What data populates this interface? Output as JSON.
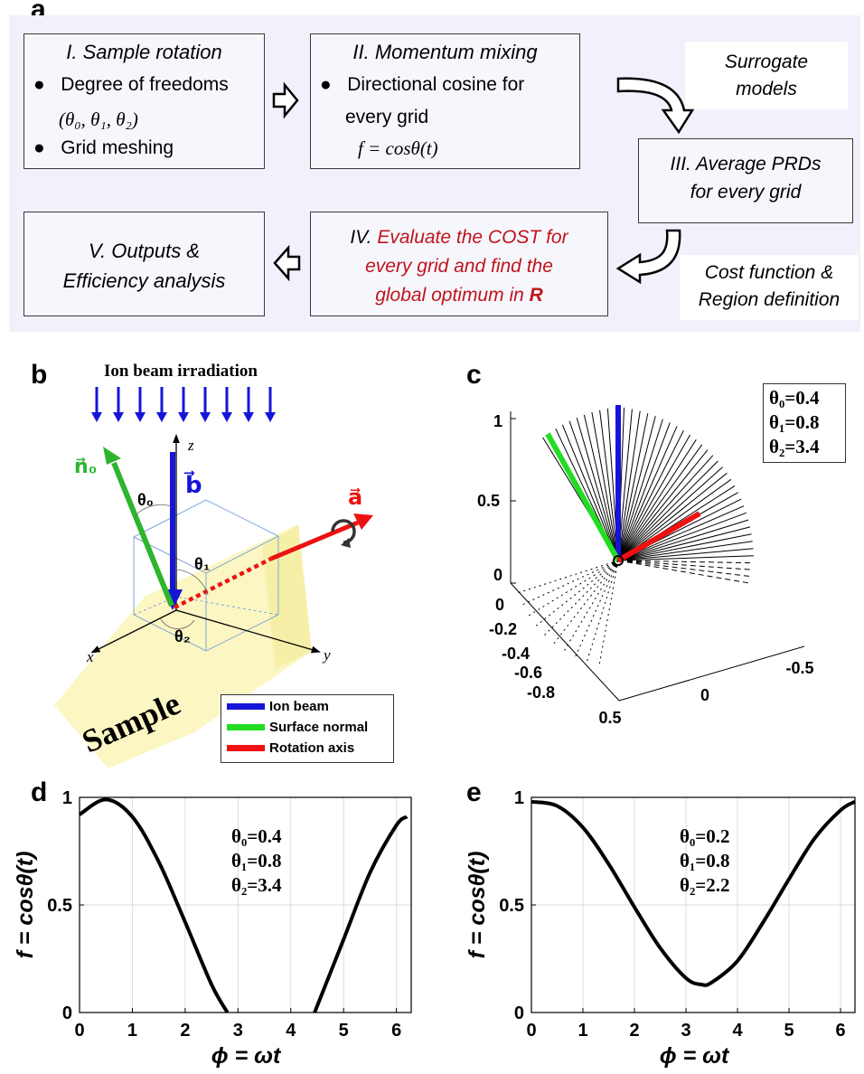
{
  "panel_a": {
    "letter": "a",
    "box1": {
      "title": "I. Sample rotation",
      "bullet1": "Degree of freedoms",
      "bullet1_sub": "(θ₀, θ₁, θ₂)",
      "bullet2": "Grid meshing"
    },
    "box2": {
      "title": "II. Momentum mixing",
      "bullet1": "Directional cosine for",
      "bullet1_line2": "every grid",
      "formula": "f = cosθ(t)"
    },
    "note_surrogate": {
      "line1": "Surrogate",
      "line2": "models"
    },
    "box3": {
      "line1": "III. Average PRDs",
      "line2": "for every grid"
    },
    "note_cost": {
      "line1": "Cost function  &",
      "line2": "Region definition"
    },
    "box4": {
      "line1_prefix": "IV. ",
      "line1_red": "Evaluate the COST for",
      "line2": "every grid and find the",
      "line3_text": "global optimum in ",
      "line3_bold": "R"
    },
    "box5": {
      "line1": "V.  Outputs &",
      "line2": "Efficiency analysis"
    },
    "colors": {
      "background": "#f0f1fa",
      "box_fill": "#f6f7fd",
      "red_text": "#c0141c"
    }
  },
  "panel_b": {
    "letter": "b",
    "title": "Ion beam irradiation",
    "label_n0": "n⃗₀",
    "label_b": "b⃗",
    "label_a": "a⃗",
    "label_theta0": "θ₀",
    "label_theta1": "θ₁",
    "label_theta2": "θ₂",
    "axis_x": "x",
    "axis_y": "y",
    "axis_z": "z",
    "sample_label": "Sample",
    "legend": [
      {
        "label": "Ion beam",
        "color": "#1515d8"
      },
      {
        "label": "Surface normal",
        "color": "#22dd22"
      },
      {
        "label": "Rotation axis",
        "color": "#ee1111"
      }
    ],
    "colors": {
      "beam": "#1515d8",
      "normal": "#2db52d",
      "axis": "#ee1111",
      "sample": "#fbf5b8"
    }
  },
  "panel_c": {
    "letter": "c",
    "params": [
      "θ₀=0.4",
      "θ₁=0.8",
      "θ₂=3.4"
    ],
    "z_ticks": [
      "1",
      "0.5",
      "0"
    ],
    "left_ticks": [
      "0",
      "-0.2",
      "-0.4",
      "-0.6",
      "-0.8"
    ],
    "front_ticks": [
      "0.5",
      "0",
      "-0.5"
    ]
  },
  "panel_d": {
    "letter": "d",
    "params": [
      "θ₀=0.4",
      "θ₁=0.8",
      "θ₂=3.4"
    ],
    "theta0": 0.4,
    "theta1": 0.8,
    "theta2": 3.4,
    "chart_data": {
      "type": "line",
      "xlabel": "ϕ = ωt",
      "ylabel": "f = cosθ(t)",
      "xlim": [
        0,
        6.28
      ],
      "ylim": [
        0,
        1
      ],
      "xticks": [
        "0",
        "1",
        "2",
        "3",
        "4",
        "5",
        "6"
      ],
      "yticks": [
        "0",
        "0.5",
        "1"
      ],
      "grid": true,
      "x": [
        0,
        0.5,
        1,
        1.5,
        2,
        2.5,
        2.8,
        4.45,
        5,
        5.5,
        6,
        6.2
      ],
      "y": [
        0.92,
        0.99,
        0.91,
        0.7,
        0.42,
        0.13,
        0,
        0,
        0.34,
        0.65,
        0.87,
        0.91
      ]
    }
  },
  "panel_e": {
    "letter": "e",
    "params": [
      "θ₀=0.2",
      "θ₁=0.8",
      "θ₂=2.2"
    ],
    "theta0": 0.2,
    "theta1": 0.8,
    "theta2": 2.2,
    "chart_data": {
      "type": "line",
      "xlabel": "ϕ = ωt",
      "ylabel": "f = cosθ(t)",
      "xlim": [
        0,
        6.28
      ],
      "ylim": [
        0,
        1
      ],
      "xticks": [
        "0",
        "1",
        "2",
        "3",
        "4",
        "5",
        "6"
      ],
      "yticks": [
        "0",
        "0.5",
        "1"
      ],
      "grid": true,
      "x": [
        0,
        0.5,
        1,
        1.5,
        2,
        2.5,
        3,
        3.3,
        3.5,
        4,
        4.5,
        5,
        5.5,
        6,
        6.28
      ],
      "y": [
        0.98,
        0.96,
        0.86,
        0.69,
        0.49,
        0.3,
        0.16,
        0.13,
        0.14,
        0.24,
        0.42,
        0.62,
        0.81,
        0.94,
        0.98
      ]
    }
  }
}
